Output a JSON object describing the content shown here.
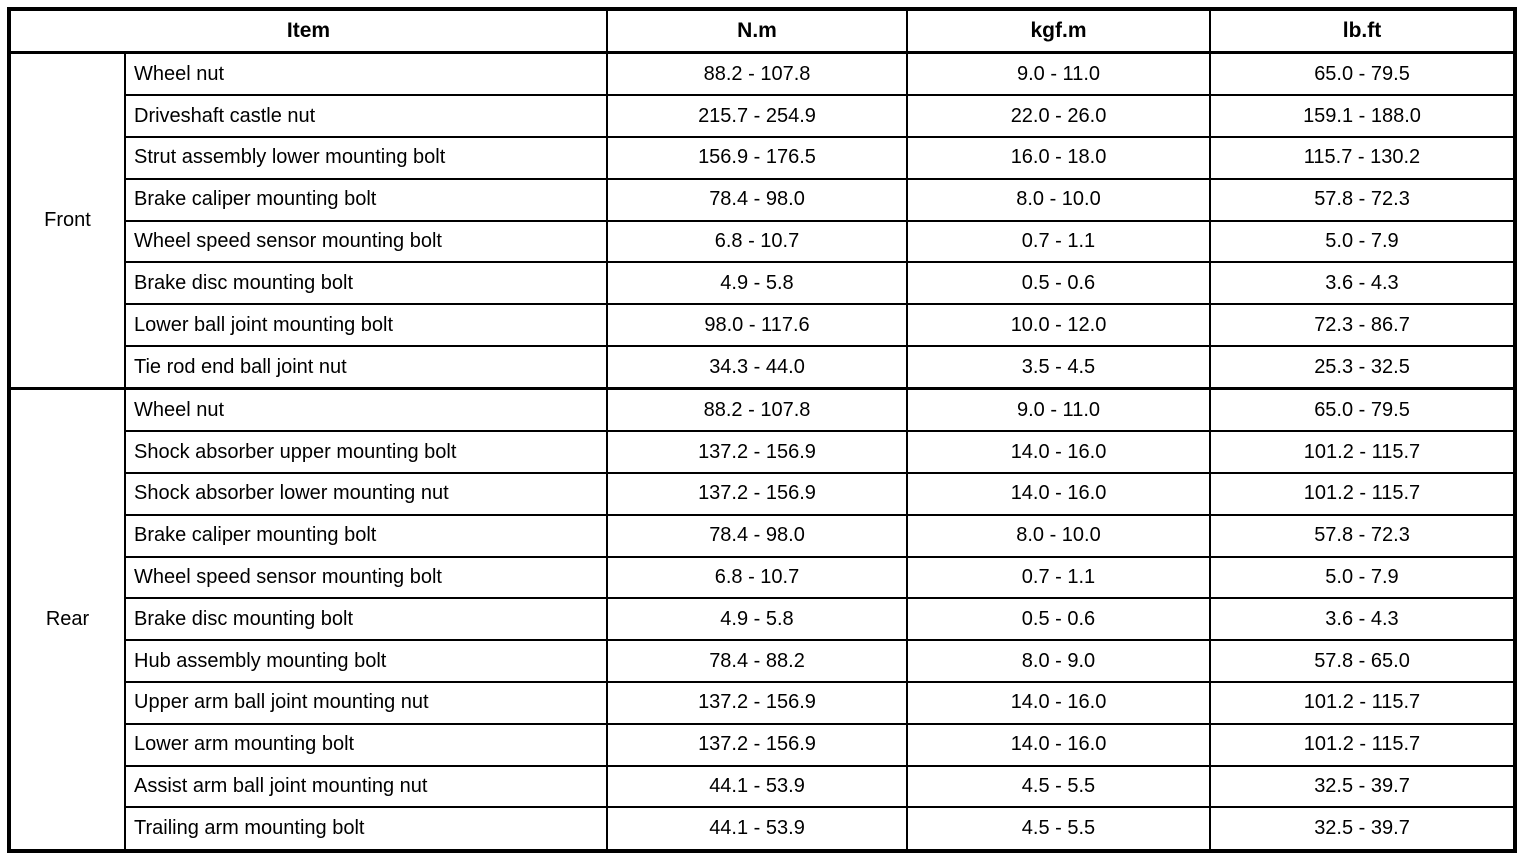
{
  "table": {
    "headers": {
      "item": "Item",
      "nm": "N.m",
      "kgfm": "kgf.m",
      "lbft": "lb.ft"
    },
    "sections": [
      {
        "group": "Front",
        "rows": [
          {
            "item": "Wheel nut",
            "nm": "88.2 - 107.8",
            "kgfm": "9.0 - 11.0",
            "lbft": "65.0 - 79.5"
          },
          {
            "item": "Driveshaft castle nut",
            "nm": "215.7 - 254.9",
            "kgfm": "22.0 - 26.0",
            "lbft": "159.1 - 188.0"
          },
          {
            "item": "Strut assembly lower mounting bolt",
            "nm": "156.9 - 176.5",
            "kgfm": "16.0 - 18.0",
            "lbft": "115.7 - 130.2"
          },
          {
            "item": "Brake caliper mounting bolt",
            "nm": "78.4 - 98.0",
            "kgfm": "8.0 - 10.0",
            "lbft": "57.8 - 72.3"
          },
          {
            "item": "Wheel speed sensor mounting bolt",
            "nm": "6.8 - 10.7",
            "kgfm": "0.7 - 1.1",
            "lbft": "5.0 - 7.9"
          },
          {
            "item": "Brake disc mounting bolt",
            "nm": "4.9 - 5.8",
            "kgfm": "0.5 - 0.6",
            "lbft": "3.6 - 4.3"
          },
          {
            "item": "Lower ball joint mounting bolt",
            "nm": "98.0 - 117.6",
            "kgfm": "10.0 - 12.0",
            "lbft": "72.3 - 86.7"
          },
          {
            "item": "Tie rod end ball joint nut",
            "nm": "34.3 - 44.0",
            "kgfm": "3.5 - 4.5",
            "lbft": "25.3 - 32.5"
          }
        ]
      },
      {
        "group": "Rear",
        "rows": [
          {
            "item": "Wheel nut",
            "nm": "88.2 - 107.8",
            "kgfm": "9.0 - 11.0",
            "lbft": "65.0 - 79.5"
          },
          {
            "item": "Shock absorber upper mounting bolt",
            "nm": "137.2 - 156.9",
            "kgfm": "14.0 - 16.0",
            "lbft": "101.2 - 115.7"
          },
          {
            "item": "Shock absorber lower mounting nut",
            "nm": "137.2 - 156.9",
            "kgfm": "14.0 - 16.0",
            "lbft": "101.2 - 115.7"
          },
          {
            "item": "Brake caliper mounting bolt",
            "nm": "78.4 - 98.0",
            "kgfm": "8.0 - 10.0",
            "lbft": "57.8 - 72.3"
          },
          {
            "item": "Wheel speed sensor mounting bolt",
            "nm": "6.8 - 10.7",
            "kgfm": "0.7 - 1.1",
            "lbft": "5.0 - 7.9"
          },
          {
            "item": "Brake disc mounting bolt",
            "nm": "4.9 - 5.8",
            "kgfm": "0.5 - 0.6",
            "lbft": "3.6 - 4.3"
          },
          {
            "item": "Hub assembly mounting bolt",
            "nm": "78.4 - 88.2",
            "kgfm": "8.0 - 9.0",
            "lbft": "57.8 - 65.0"
          },
          {
            "item": "Upper arm ball joint mounting nut",
            "nm": "137.2 - 156.9",
            "kgfm": "14.0 - 16.0",
            "lbft": "101.2 - 115.7"
          },
          {
            "item": "Lower arm mounting bolt",
            "nm": "137.2 - 156.9",
            "kgfm": "14.0 - 16.0",
            "lbft": "101.2 - 115.7"
          },
          {
            "item": "Assist arm ball joint mounting nut",
            "nm": "44.1 - 53.9",
            "kgfm": "4.5 - 5.5",
            "lbft": "32.5 - 39.7"
          },
          {
            "item": "Trailing arm mounting bolt",
            "nm": "44.1 - 53.9",
            "kgfm": "4.5 - 5.5",
            "lbft": "32.5 - 39.7"
          }
        ]
      }
    ]
  }
}
